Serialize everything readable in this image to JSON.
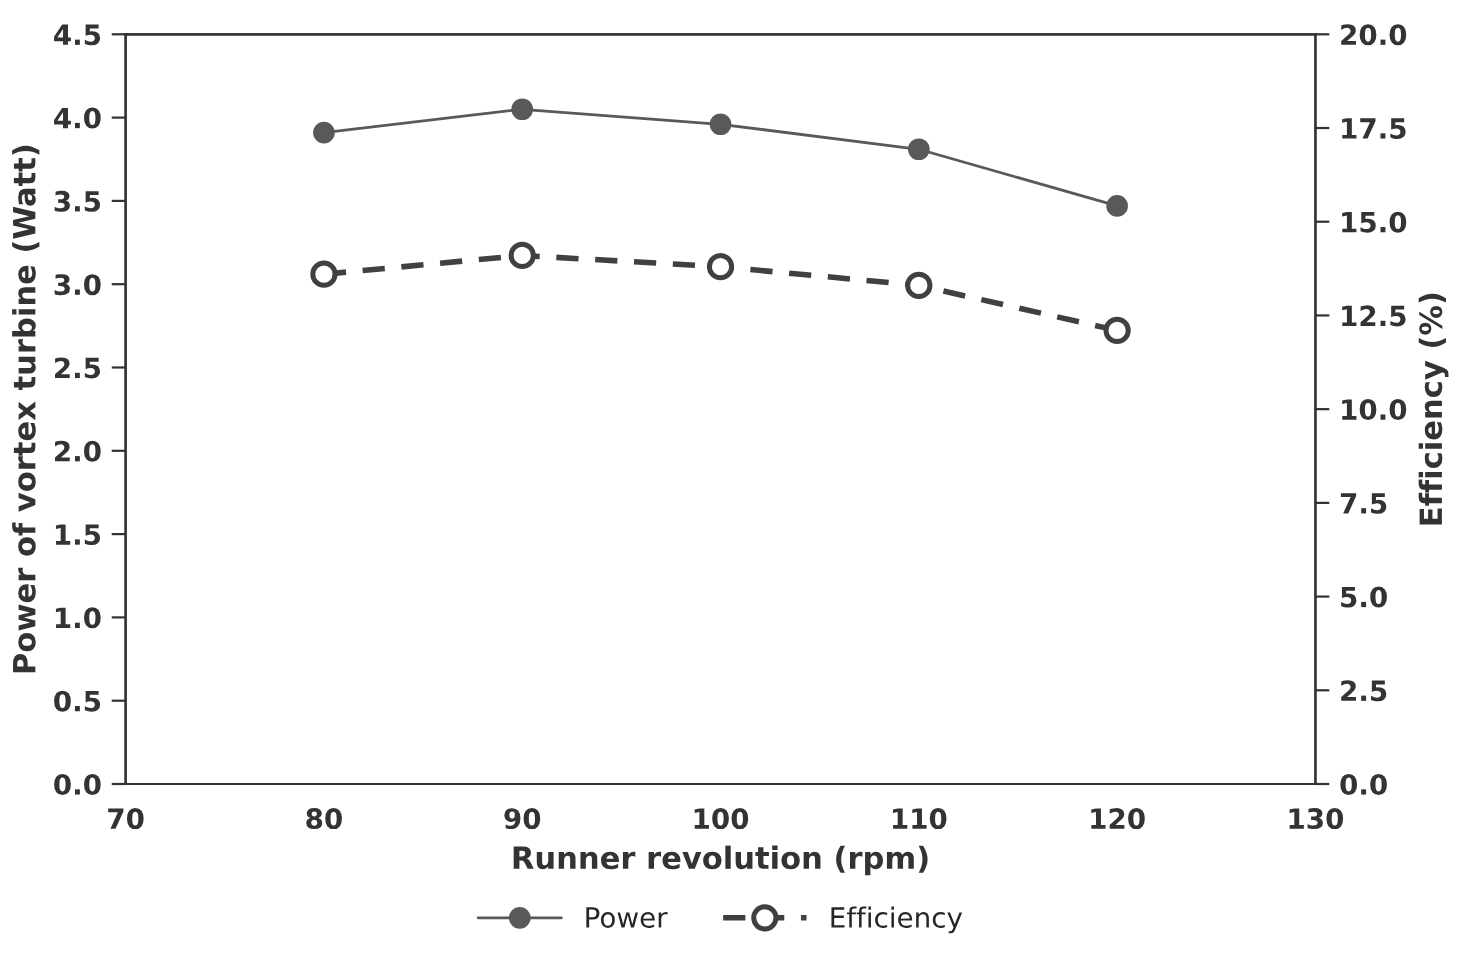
{
  "chart_data": {
    "type": "line",
    "xlabel": "Runner revolution (rpm)",
    "ylabel": "Power of vortex turbine (Watt)",
    "y2label": "Efficiency (%)",
    "x": [
      80,
      90,
      100,
      110,
      120
    ],
    "series": [
      {
        "name": "Power",
        "color": "#595959",
        "values": [
          3.91,
          4.05,
          3.96,
          3.81,
          3.47
        ],
        "marker": "circle",
        "line_style": "solid"
      },
      {
        "name": "Efficiency",
        "color": "#404040",
        "values": [
          13.6,
          14.1,
          13.8,
          13.3,
          12.1
        ],
        "marker": "circle",
        "line_style": "dashed",
        "axis": "y2"
      }
    ],
    "xlim": [
      70,
      130
    ],
    "xticks": [
      70,
      80,
      90,
      100,
      110,
      120,
      130
    ],
    "ylim": [
      0,
      4.5
    ],
    "yticks": [
      {
        "value": 0,
        "label": "0.0"
      },
      {
        "value": 0.5,
        "label": "0.5"
      },
      {
        "value": 1,
        "label": "1.0"
      },
      {
        "value": 1.5,
        "label": "1.5"
      },
      {
        "value": 2,
        "label": "2.0"
      },
      {
        "value": 2.5,
        "label": "2.5"
      },
      {
        "value": 3,
        "label": "3.0"
      },
      {
        "value": 3.5,
        "label": "3.5"
      },
      {
        "value": 4,
        "label": "4.0"
      },
      {
        "value": 4.5,
        "label": "4.5"
      }
    ],
    "y2lim": [
      0,
      20
    ],
    "y2ticks": [
      {
        "value": 0,
        "label": "0.0"
      },
      {
        "value": 2.5,
        "label": "2.5"
      },
      {
        "value": 5,
        "label": "5.0"
      },
      {
        "value": 7.5,
        "label": "7.5"
      },
      {
        "value": 10,
        "label": "10.0"
      },
      {
        "value": 12.5,
        "label": "12.5"
      },
      {
        "value": 15,
        "label": "15.0"
      },
      {
        "value": 17.5,
        "label": "17.5"
      },
      {
        "value": 20,
        "label": "20.0"
      }
    ],
    "grid": false,
    "legend": "bottom"
  }
}
